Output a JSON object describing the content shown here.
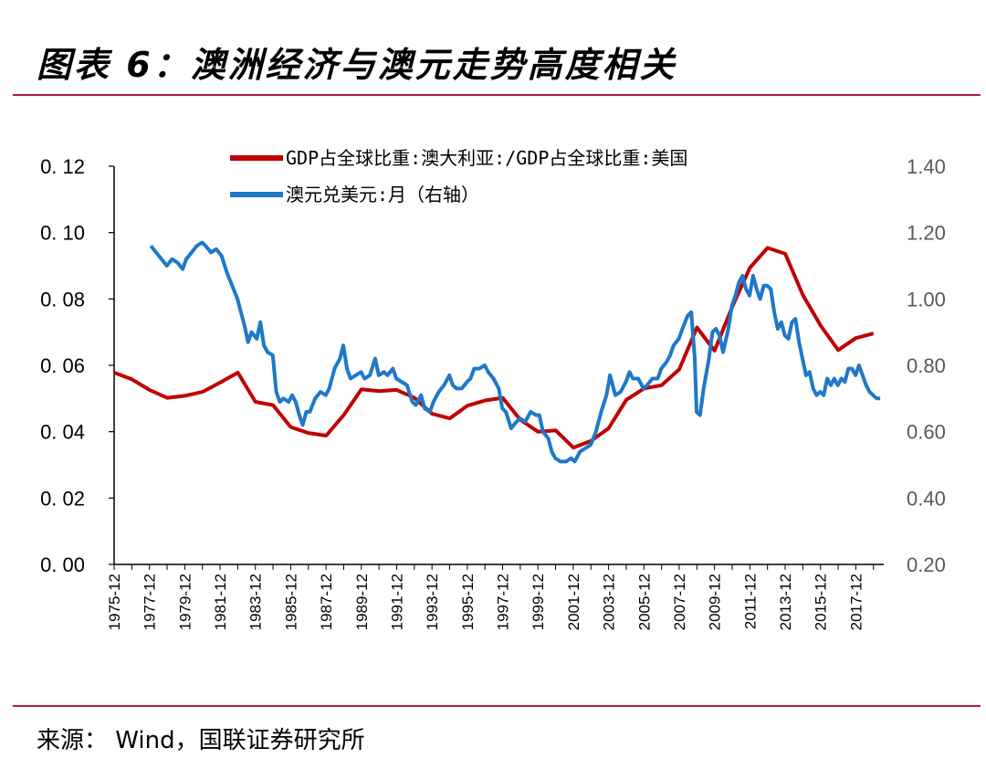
{
  "header": {
    "title": "图表 6：澳洲经济与澳元走势高度相关"
  },
  "footer": {
    "source": "来源：  Wind，国联证券研究所"
  },
  "colors": {
    "rule": "#b5193a",
    "series_gdp": "#c00000",
    "series_aud": "#1f78c8"
  },
  "chart_data": {
    "type": "line",
    "y_left_lim": [
      0,
      0.12
    ],
    "y_left_ticks": [
      "0. 00",
      "0. 02",
      "0. 04",
      "0. 06",
      "0. 08",
      "0. 10",
      "0. 12"
    ],
    "y_right_lim": [
      0.2,
      1.4
    ],
    "y_right_ticks": [
      "0.20",
      "0.40",
      "0.60",
      "0.80",
      "1.00",
      "1.20",
      "1.40"
    ],
    "x_range": [
      1975.917,
      2019.5
    ],
    "x_ticks": [
      "1975-12",
      "1977-12",
      "1979-12",
      "1981-12",
      "1983-12",
      "1985-12",
      "1987-12",
      "1989-12",
      "1991-12",
      "1993-12",
      "1995-12",
      "1997-12",
      "1999-12",
      "2001-12",
      "2003-12",
      "2005-12",
      "2007-12",
      "2009-12",
      "2011-12",
      "2013-12",
      "2015-12",
      "2017-12"
    ],
    "legend": "top",
    "series": [
      {
        "name": "GDP占全球比重:澳大利亚:/GDP占全球比重:美国",
        "axis": "left",
        "points": [
          [
            1975.92,
            0.0578
          ],
          [
            1976.92,
            0.0558
          ],
          [
            1977.92,
            0.0526
          ],
          [
            1978.92,
            0.0502
          ],
          [
            1979.92,
            0.0508
          ],
          [
            1980.92,
            0.052
          ],
          [
            1981.92,
            0.0548
          ],
          [
            1982.92,
            0.0578
          ],
          [
            1983.92,
            0.049
          ],
          [
            1984.92,
            0.048
          ],
          [
            1985.92,
            0.0414
          ],
          [
            1986.92,
            0.0396
          ],
          [
            1987.92,
            0.0388
          ],
          [
            1988.92,
            0.045
          ],
          [
            1989.92,
            0.0528
          ],
          [
            1990.92,
            0.0522
          ],
          [
            1991.92,
            0.0526
          ],
          [
            1992.92,
            0.0502
          ],
          [
            1993.92,
            0.0454
          ],
          [
            1994.92,
            0.044
          ],
          [
            1995.92,
            0.0478
          ],
          [
            1996.92,
            0.0494
          ],
          [
            1997.92,
            0.0502
          ],
          [
            1998.92,
            0.0436
          ],
          [
            1999.92,
            0.04
          ],
          [
            2000.92,
            0.0404
          ],
          [
            2001.92,
            0.0352
          ],
          [
            2002.92,
            0.0372
          ],
          [
            2003.92,
            0.041
          ],
          [
            2004.92,
            0.0496
          ],
          [
            2005.92,
            0.053
          ],
          [
            2006.92,
            0.054
          ],
          [
            2007.92,
            0.0588
          ],
          [
            2008.92,
            0.0714
          ],
          [
            2009.92,
            0.0644
          ],
          [
            2010.92,
            0.0776
          ],
          [
            2011.92,
            0.0894
          ],
          [
            2012.92,
            0.0954
          ],
          [
            2013.92,
            0.0936
          ],
          [
            2014.92,
            0.0812
          ],
          [
            2015.92,
            0.072
          ],
          [
            2016.92,
            0.0646
          ],
          [
            2017.92,
            0.0682
          ],
          [
            2018.92,
            0.0696
          ]
        ]
      },
      {
        "name": "澳元兑美元:月（右轴）",
        "axis": "right",
        "points": [
          [
            1978.0,
            1.16
          ],
          [
            1978.3,
            1.14
          ],
          [
            1978.6,
            1.12
          ],
          [
            1978.9,
            1.1
          ],
          [
            1979.2,
            1.12
          ],
          [
            1979.5,
            1.11
          ],
          [
            1979.8,
            1.09
          ],
          [
            1980.0,
            1.12
          ],
          [
            1980.3,
            1.14
          ],
          [
            1980.6,
            1.16
          ],
          [
            1980.9,
            1.17
          ],
          [
            1981.1,
            1.16
          ],
          [
            1981.4,
            1.14
          ],
          [
            1981.7,
            1.15
          ],
          [
            1982.0,
            1.13
          ],
          [
            1982.3,
            1.08
          ],
          [
            1982.6,
            1.04
          ],
          [
            1982.9,
            1.0
          ],
          [
            1983.1,
            0.96
          ],
          [
            1983.3,
            0.92
          ],
          [
            1983.5,
            0.87
          ],
          [
            1983.7,
            0.9
          ],
          [
            1984.0,
            0.88
          ],
          [
            1984.2,
            0.93
          ],
          [
            1984.4,
            0.86
          ],
          [
            1984.6,
            0.84
          ],
          [
            1984.9,
            0.83
          ],
          [
            1985.1,
            0.72
          ],
          [
            1985.3,
            0.69
          ],
          [
            1985.5,
            0.7
          ],
          [
            1985.8,
            0.69
          ],
          [
            1986.0,
            0.71
          ],
          [
            1986.2,
            0.69
          ],
          [
            1986.4,
            0.65
          ],
          [
            1986.6,
            0.62
          ],
          [
            1986.8,
            0.66
          ],
          [
            1987.0,
            0.66
          ],
          [
            1987.3,
            0.7
          ],
          [
            1987.6,
            0.72
          ],
          [
            1987.9,
            0.71
          ],
          [
            1988.1,
            0.73
          ],
          [
            1988.4,
            0.79
          ],
          [
            1988.7,
            0.82
          ],
          [
            1988.9,
            0.86
          ],
          [
            1989.1,
            0.79
          ],
          [
            1989.3,
            0.76
          ],
          [
            1989.6,
            0.77
          ],
          [
            1989.9,
            0.78
          ],
          [
            1990.1,
            0.76
          ],
          [
            1990.4,
            0.77
          ],
          [
            1990.7,
            0.82
          ],
          [
            1990.9,
            0.77
          ],
          [
            1991.2,
            0.78
          ],
          [
            1991.4,
            0.77
          ],
          [
            1991.7,
            0.79
          ],
          [
            1991.9,
            0.76
          ],
          [
            1992.2,
            0.75
          ],
          [
            1992.5,
            0.74
          ],
          [
            1992.8,
            0.69
          ],
          [
            1993.0,
            0.68
          ],
          [
            1993.3,
            0.71
          ],
          [
            1993.5,
            0.67
          ],
          [
            1993.8,
            0.66
          ],
          [
            1994.0,
            0.69
          ],
          [
            1994.3,
            0.72
          ],
          [
            1994.6,
            0.74
          ],
          [
            1994.9,
            0.77
          ],
          [
            1995.1,
            0.74
          ],
          [
            1995.3,
            0.73
          ],
          [
            1995.6,
            0.73
          ],
          [
            1995.9,
            0.75
          ],
          [
            1996.1,
            0.76
          ],
          [
            1996.3,
            0.79
          ],
          [
            1996.6,
            0.79
          ],
          [
            1996.9,
            0.8
          ],
          [
            1997.1,
            0.78
          ],
          [
            1997.4,
            0.76
          ],
          [
            1997.7,
            0.73
          ],
          [
            1997.9,
            0.67
          ],
          [
            1998.1,
            0.66
          ],
          [
            1998.4,
            0.61
          ],
          [
            1998.7,
            0.63
          ],
          [
            1998.9,
            0.64
          ],
          [
            1999.2,
            0.63
          ],
          [
            1999.5,
            0.66
          ],
          [
            1999.8,
            0.65
          ],
          [
            2000.0,
            0.65
          ],
          [
            2000.2,
            0.6
          ],
          [
            2000.5,
            0.58
          ],
          [
            2000.7,
            0.54
          ],
          [
            2000.9,
            0.52
          ],
          [
            2001.2,
            0.51
          ],
          [
            2001.5,
            0.51
          ],
          [
            2001.8,
            0.52
          ],
          [
            2002.0,
            0.51
          ],
          [
            2002.3,
            0.54
          ],
          [
            2002.6,
            0.55
          ],
          [
            2002.9,
            0.56
          ],
          [
            2003.2,
            0.6
          ],
          [
            2003.5,
            0.66
          ],
          [
            2003.8,
            0.71
          ],
          [
            2004.0,
            0.77
          ],
          [
            2004.3,
            0.71
          ],
          [
            2004.6,
            0.72
          ],
          [
            2004.9,
            0.75
          ],
          [
            2005.1,
            0.78
          ],
          [
            2005.3,
            0.76
          ],
          [
            2005.6,
            0.76
          ],
          [
            2005.9,
            0.73
          ],
          [
            2006.1,
            0.74
          ],
          [
            2006.4,
            0.76
          ],
          [
            2006.7,
            0.76
          ],
          [
            2006.9,
            0.79
          ],
          [
            2007.2,
            0.81
          ],
          [
            2007.4,
            0.83
          ],
          [
            2007.6,
            0.86
          ],
          [
            2007.9,
            0.88
          ],
          [
            2008.1,
            0.91
          ],
          [
            2008.4,
            0.95
          ],
          [
            2008.6,
            0.96
          ],
          [
            2008.8,
            0.82
          ],
          [
            2008.9,
            0.66
          ],
          [
            2009.1,
            0.65
          ],
          [
            2009.3,
            0.73
          ],
          [
            2009.6,
            0.82
          ],
          [
            2009.8,
            0.9
          ],
          [
            2010.0,
            0.91
          ],
          [
            2010.2,
            0.89
          ],
          [
            2010.4,
            0.84
          ],
          [
            2010.7,
            0.91
          ],
          [
            2010.9,
            0.98
          ],
          [
            2011.1,
            1.01
          ],
          [
            2011.3,
            1.05
          ],
          [
            2011.5,
            1.07
          ],
          [
            2011.7,
            1.03
          ],
          [
            2011.9,
            1.01
          ],
          [
            2012.1,
            1.07
          ],
          [
            2012.3,
            1.03
          ],
          [
            2012.5,
            1.0
          ],
          [
            2012.7,
            1.04
          ],
          [
            2012.9,
            1.04
          ],
          [
            2013.1,
            1.03
          ],
          [
            2013.3,
            0.96
          ],
          [
            2013.5,
            0.91
          ],
          [
            2013.7,
            0.93
          ],
          [
            2013.9,
            0.89
          ],
          [
            2014.1,
            0.88
          ],
          [
            2014.3,
            0.93
          ],
          [
            2014.5,
            0.94
          ],
          [
            2014.7,
            0.87
          ],
          [
            2014.9,
            0.82
          ],
          [
            2015.1,
            0.77
          ],
          [
            2015.3,
            0.78
          ],
          [
            2015.5,
            0.73
          ],
          [
            2015.7,
            0.71
          ],
          [
            2015.9,
            0.72
          ],
          [
            2016.1,
            0.71
          ],
          [
            2016.3,
            0.76
          ],
          [
            2016.5,
            0.74
          ],
          [
            2016.7,
            0.76
          ],
          [
            2016.9,
            0.74
          ],
          [
            2017.1,
            0.76
          ],
          [
            2017.3,
            0.75
          ],
          [
            2017.5,
            0.79
          ],
          [
            2017.7,
            0.79
          ],
          [
            2017.9,
            0.77
          ],
          [
            2018.1,
            0.8
          ],
          [
            2018.3,
            0.77
          ],
          [
            2018.5,
            0.74
          ],
          [
            2018.7,
            0.72
          ],
          [
            2018.9,
            0.71
          ],
          [
            2019.1,
            0.7
          ],
          [
            2019.3,
            0.7
          ]
        ]
      }
    ]
  }
}
